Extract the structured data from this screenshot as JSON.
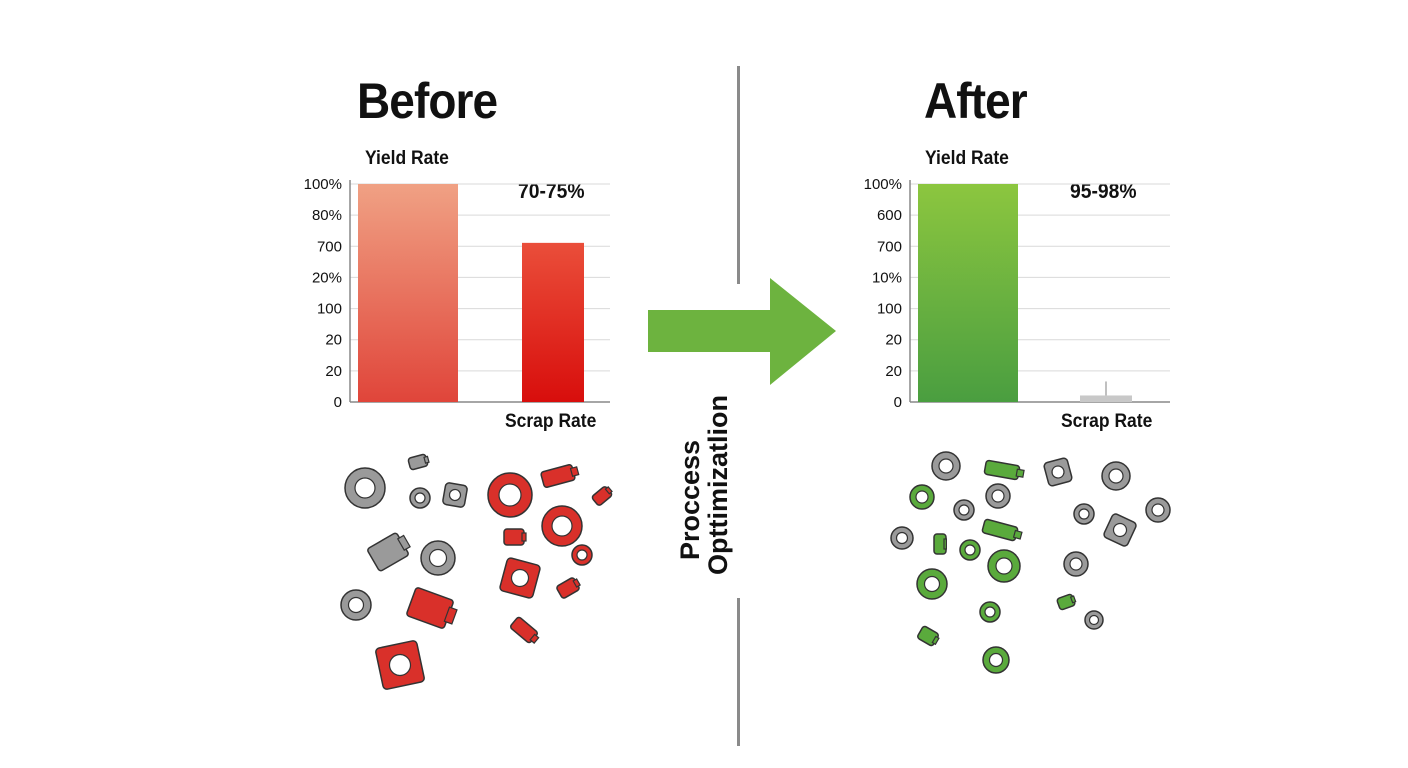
{
  "colors": {
    "before_bar_top": "#f0a184",
    "before_bar_bottom": "#e0453a",
    "before_scrap_top": "#ea4e3a",
    "before_scrap_bottom": "#d80e0c",
    "after_bar_top": "#8cc63f",
    "after_bar_bottom": "#4a9e40",
    "after_scrap": "#c8c8c8",
    "arrow": "#6db33f",
    "part_gray": "#9a9a9a",
    "part_red": "#d9302a",
    "part_green": "#5aaa3c"
  },
  "center": {
    "label_line1": "Proccess",
    "label_line2": "Opttimizatlion",
    "arrow_icon": "right-arrow-icon"
  },
  "chart_data": [
    {
      "type": "bar",
      "panel_title": "Before",
      "title": "",
      "ylabel": "Yield Rate",
      "xlabel": "Scrap Rate",
      "annotation": "70-75%",
      "ytick_labels": [
        "100%",
        "80%",
        "700",
        "20%",
        "100",
        "20",
        "20",
        "0"
      ],
      "ylim": [
        0,
        100
      ],
      "categories": [
        "Yield Rate",
        "Scrap Rate"
      ],
      "values": [
        100,
        73
      ]
    },
    {
      "type": "bar",
      "panel_title": "After",
      "title": "",
      "ylabel": "Yield Rate",
      "xlabel": "Scrap Rate",
      "annotation": "95-98%",
      "ytick_labels": [
        "100%",
        "600",
        "700",
        "10%",
        "100",
        "20",
        "20",
        "0"
      ],
      "ylim": [
        0,
        100
      ],
      "categories": [
        "Yield Rate",
        "Scrap Rate"
      ],
      "values": [
        100,
        3
      ]
    }
  ]
}
